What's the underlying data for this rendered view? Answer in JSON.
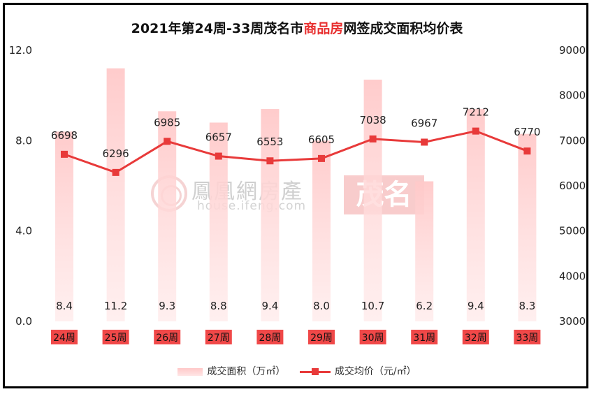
{
  "title_parts": {
    "prefix": "2021年第24周-33周茂名市",
    "highlight": "商品房",
    "suffix": "网签成交面积均价表"
  },
  "watermark": {
    "chinese": "鳳凰網房產",
    "english": "house.ifeng.com",
    "city": "茂名"
  },
  "chart_data": {
    "type": "bar",
    "categories": [
      "24周",
      "25周",
      "26周",
      "27周",
      "28周",
      "29周",
      "30周",
      "31周",
      "32周",
      "33周"
    ],
    "series": [
      {
        "name": "成交面积（万㎡）",
        "type": "bar",
        "axis": "left",
        "values": [
          8.4,
          11.2,
          9.3,
          8.8,
          9.4,
          8.0,
          10.7,
          6.2,
          9.4,
          8.3
        ],
        "labels": [
          "8.4",
          "11.2",
          "9.3",
          "8.8",
          "9.4",
          "8.0",
          "10.7",
          "6.2",
          "9.4",
          "8.3"
        ]
      },
      {
        "name": "成交均价（元/㎡）",
        "type": "line",
        "axis": "right",
        "values": [
          6698,
          6296,
          6985,
          6657,
          6553,
          6605,
          7038,
          6967,
          7212,
          6770
        ]
      }
    ],
    "y_left": {
      "min": 0,
      "max": 12,
      "ticks": [
        "0.0",
        "4.0",
        "8.0",
        "12.0"
      ]
    },
    "y_right": {
      "min": 3000,
      "max": 9000,
      "ticks": [
        "3000",
        "4000",
        "5000",
        "6000",
        "7000",
        "8000",
        "9000"
      ]
    },
    "grid": false,
    "legend_position": "bottom",
    "colors": {
      "bar_top": "#ffc9c9",
      "bar_bottom": "#ffebeb",
      "line": "#e83a3a",
      "category_bg": "#f04848",
      "title_highlight": "#e83030"
    }
  }
}
